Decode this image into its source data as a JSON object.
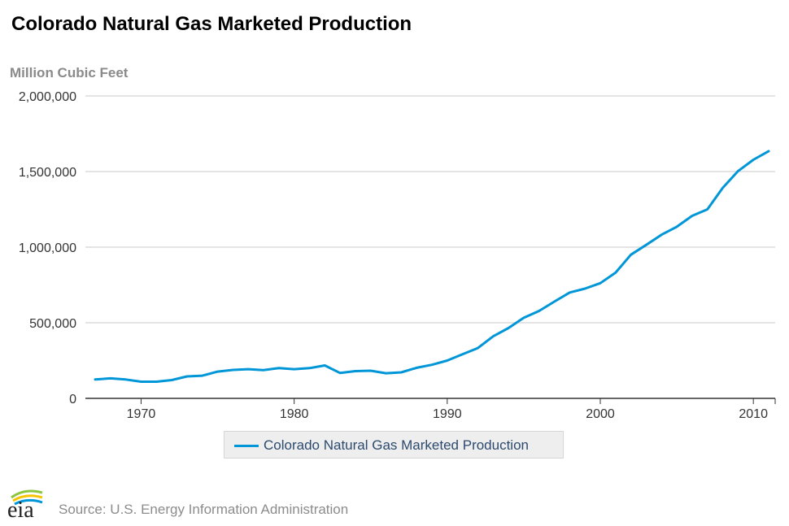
{
  "page": {
    "title": "Colorado Natural Gas Marketed Production",
    "unit_label": "Million Cubic Feet",
    "source": "Source: U.S. Energy Information Administration",
    "logo_text": "eia"
  },
  "colors": {
    "series": "#0096d7",
    "gridline": "#c8c8c8",
    "legend_bg": "#eeeeee",
    "logo_arc_green": "#8cc63f",
    "logo_arc_yellow": "#f6c300",
    "logo_arc_blue": "#0096d7"
  },
  "chart_data": {
    "type": "line",
    "title": "Colorado Natural Gas Marketed Production",
    "ylabel": "Million Cubic Feet",
    "xlim": [
      1967,
      2011
    ],
    "ylim": [
      0,
      2000000
    ],
    "x_ticks": [
      1970,
      1980,
      1990,
      2000,
      2010
    ],
    "y_ticks": [
      0,
      500000,
      1000000,
      1500000,
      2000000
    ],
    "y_tick_labels": [
      "0",
      "500,000",
      "1,000,000",
      "1,500,000",
      "2,000,000"
    ],
    "grid": true,
    "legend_position": "bottom",
    "series": [
      {
        "name": "Colorado Natural Gas Marketed Production",
        "x": [
          1967,
          1968,
          1969,
          1970,
          1971,
          1972,
          1973,
          1974,
          1975,
          1976,
          1977,
          1978,
          1979,
          1980,
          1981,
          1982,
          1983,
          1984,
          1985,
          1986,
          1987,
          1988,
          1989,
          1990,
          1991,
          1992,
          1993,
          1994,
          1995,
          1996,
          1997,
          1998,
          1999,
          2000,
          2001,
          2002,
          2003,
          2004,
          2005,
          2006,
          2007,
          2008,
          2009,
          2010,
          2011
        ],
        "values": [
          125000,
          132000,
          125000,
          110000,
          110000,
          121000,
          145000,
          150000,
          177000,
          188000,
          193000,
          187000,
          200000,
          193000,
          200000,
          218000,
          168000,
          180000,
          183000,
          166000,
          172000,
          202000,
          222000,
          250000,
          292000,
          333000,
          410000,
          465000,
          533000,
          578000,
          640000,
          700000,
          726000,
          762000,
          831000,
          950000,
          1015000,
          1082000,
          1135000,
          1207000,
          1250000,
          1392000,
          1503000,
          1578000,
          1635000
        ]
      }
    ]
  }
}
